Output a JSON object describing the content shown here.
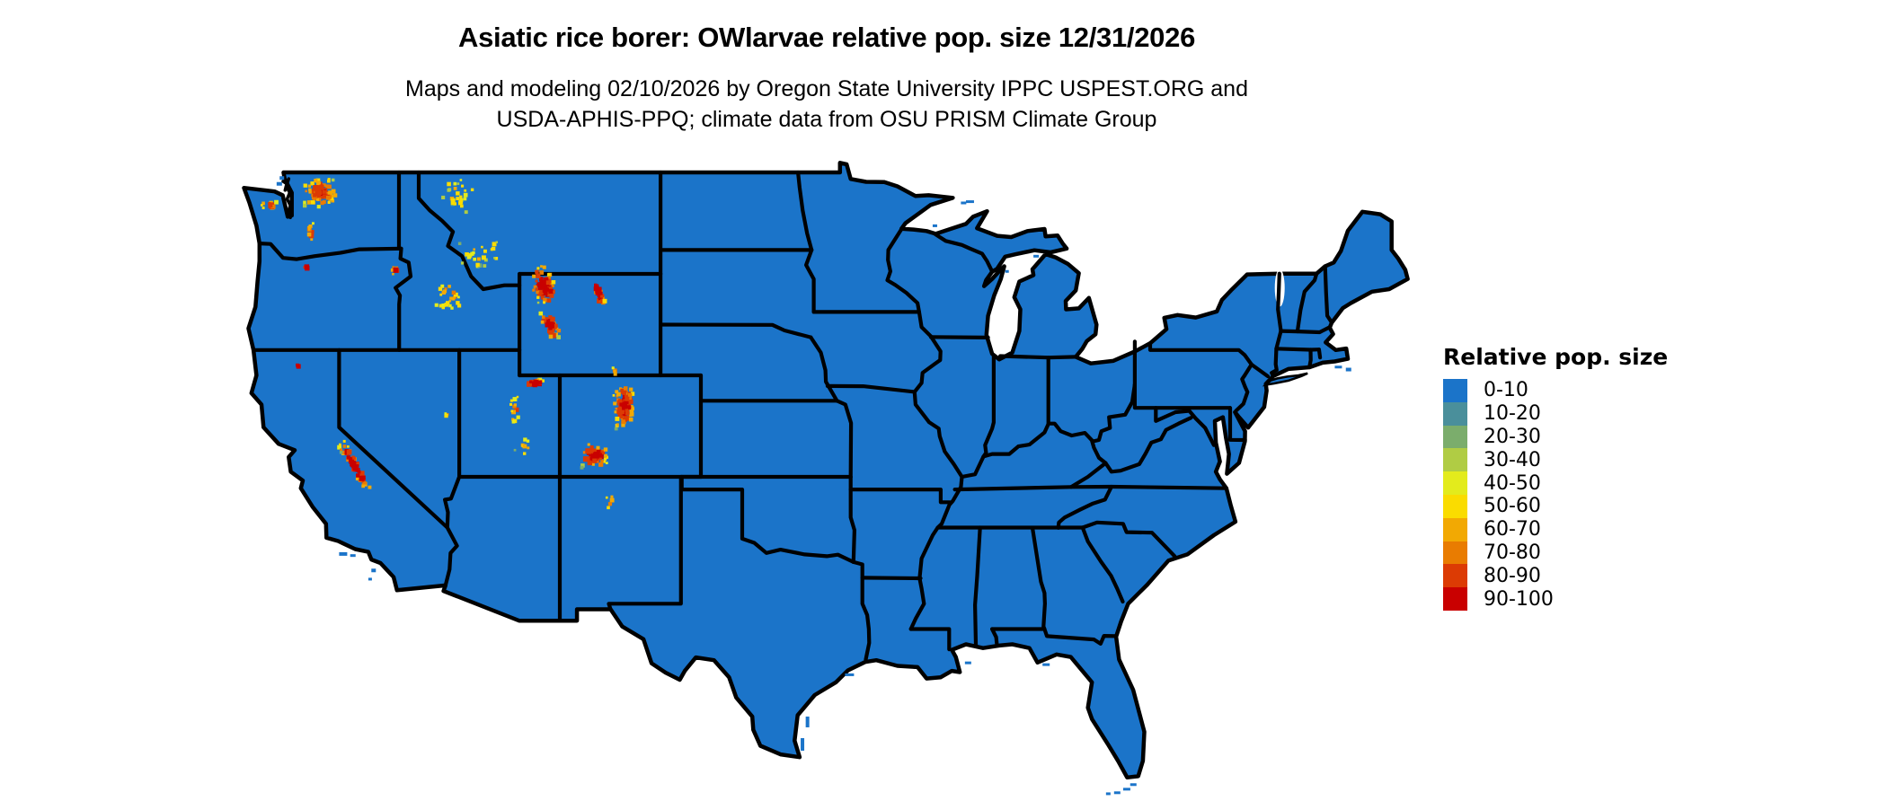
{
  "header": {
    "title": "Asiatic rice borer: OWlarvae relative pop. size 12/31/2026",
    "subtitle_line1": "Maps and modeling 02/10/2026 by Oregon State University IPPC USPEST.ORG and",
    "subtitle_line2": "USDA-APHIS-PPQ; climate data from OSU PRISM Climate Group"
  },
  "map": {
    "land_fill": "#1b74c9",
    "border_color": "#000000",
    "water_color": "#ffffff"
  },
  "legend": {
    "title": "Relative pop. size",
    "items": [
      {
        "label": "0-10",
        "color": "#1b74c9"
      },
      {
        "label": "10-20",
        "color": "#4a8f9b"
      },
      {
        "label": "20-30",
        "color": "#7bad6c"
      },
      {
        "label": "30-40",
        "color": "#b0cc44"
      },
      {
        "label": "40-50",
        "color": "#e3eb1c"
      },
      {
        "label": "50-60",
        "color": "#fadc00"
      },
      {
        "label": "60-70",
        "color": "#f2a903"
      },
      {
        "label": "70-80",
        "color": "#e97c01"
      },
      {
        "label": "80-90",
        "color": "#dc3b04"
      },
      {
        "label": "90-100",
        "color": "#c90000"
      }
    ]
  }
}
